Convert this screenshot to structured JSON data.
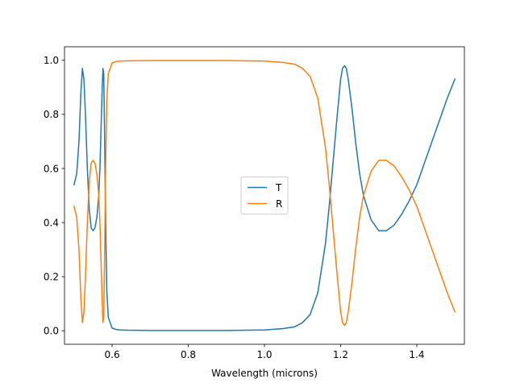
{
  "chart_data": {
    "type": "line",
    "title": "",
    "xlabel": "Wavelength (microns)",
    "ylabel": "",
    "xlim": [
      0.475,
      1.525
    ],
    "ylim": [
      -0.05,
      1.05
    ],
    "xticks": [
      0.6,
      0.8,
      1.0,
      1.2,
      1.4
    ],
    "xtick_labels": [
      "0.6",
      "0.8",
      "1.0",
      "1.2",
      "1.4"
    ],
    "yticks": [
      0.0,
      0.2,
      0.4,
      0.6,
      0.8,
      1.0
    ],
    "ytick_labels": [
      "0.0",
      "0.2",
      "0.4",
      "0.6",
      "0.8",
      "1.0"
    ],
    "grid": false,
    "legend_position": "center",
    "series": [
      {
        "name": "T",
        "color": "#1f77b4",
        "x": [
          0.5,
          0.507,
          0.513,
          0.518,
          0.522,
          0.526,
          0.53,
          0.535,
          0.54,
          0.545,
          0.55,
          0.555,
          0.56,
          0.565,
          0.568,
          0.571,
          0.574,
          0.576,
          0.578,
          0.58,
          0.583,
          0.586,
          0.59,
          0.6,
          0.61,
          0.62,
          0.64,
          0.7,
          0.8,
          0.9,
          1.0,
          1.05,
          1.08,
          1.1,
          1.12,
          1.14,
          1.16,
          1.17,
          1.18,
          1.19,
          1.2,
          1.205,
          1.21,
          1.215,
          1.22,
          1.23,
          1.24,
          1.25,
          1.26,
          1.28,
          1.3,
          1.32,
          1.34,
          1.36,
          1.38,
          1.4,
          1.42,
          1.44,
          1.46,
          1.48,
          1.5
        ],
        "y": [
          0.54,
          0.58,
          0.7,
          0.88,
          0.97,
          0.93,
          0.8,
          0.6,
          0.45,
          0.38,
          0.37,
          0.38,
          0.42,
          0.5,
          0.6,
          0.75,
          0.9,
          0.97,
          0.95,
          0.75,
          0.4,
          0.15,
          0.05,
          0.01,
          0.005,
          0.003,
          0.002,
          0.001,
          0.001,
          0.001,
          0.003,
          0.008,
          0.015,
          0.03,
          0.06,
          0.14,
          0.32,
          0.46,
          0.62,
          0.78,
          0.93,
          0.97,
          0.98,
          0.97,
          0.93,
          0.82,
          0.69,
          0.58,
          0.5,
          0.41,
          0.37,
          0.37,
          0.39,
          0.43,
          0.48,
          0.54,
          0.62,
          0.7,
          0.78,
          0.86,
          0.93
        ]
      },
      {
        "name": "R",
        "color": "#ff7f0e",
        "x": [
          0.5,
          0.507,
          0.513,
          0.518,
          0.522,
          0.526,
          0.53,
          0.535,
          0.54,
          0.545,
          0.55,
          0.555,
          0.56,
          0.565,
          0.568,
          0.571,
          0.574,
          0.576,
          0.578,
          0.58,
          0.583,
          0.586,
          0.59,
          0.6,
          0.61,
          0.62,
          0.64,
          0.7,
          0.8,
          0.9,
          1.0,
          1.05,
          1.08,
          1.1,
          1.12,
          1.14,
          1.16,
          1.17,
          1.18,
          1.19,
          1.2,
          1.205,
          1.21,
          1.215,
          1.22,
          1.23,
          1.24,
          1.25,
          1.26,
          1.28,
          1.3,
          1.32,
          1.34,
          1.36,
          1.38,
          1.4,
          1.42,
          1.44,
          1.46,
          1.48,
          1.5
        ],
        "y": [
          0.46,
          0.42,
          0.3,
          0.12,
          0.03,
          0.07,
          0.2,
          0.4,
          0.55,
          0.62,
          0.63,
          0.62,
          0.58,
          0.5,
          0.4,
          0.25,
          0.1,
          0.03,
          0.05,
          0.25,
          0.6,
          0.85,
          0.95,
          0.99,
          0.995,
          0.997,
          0.998,
          0.999,
          0.999,
          0.999,
          0.997,
          0.992,
          0.985,
          0.97,
          0.94,
          0.86,
          0.68,
          0.54,
          0.38,
          0.22,
          0.07,
          0.03,
          0.02,
          0.03,
          0.07,
          0.18,
          0.31,
          0.42,
          0.5,
          0.59,
          0.63,
          0.63,
          0.61,
          0.57,
          0.52,
          0.46,
          0.38,
          0.3,
          0.22,
          0.14,
          0.07
        ]
      }
    ]
  }
}
